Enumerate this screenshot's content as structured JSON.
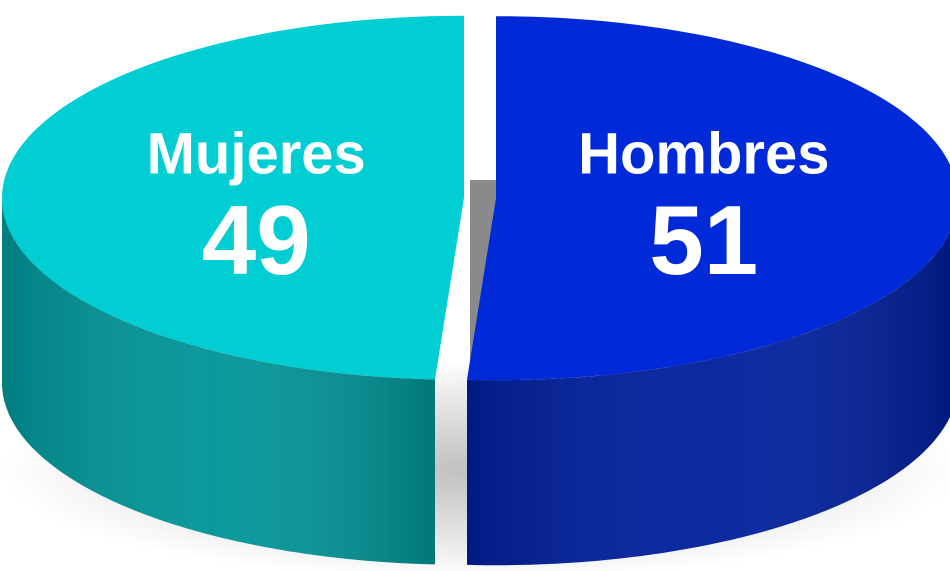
{
  "chart_data": {
    "type": "pie",
    "categories": [
      "Mujeres",
      "Hombres"
    ],
    "values": [
      49,
      51
    ],
    "colors": [
      "#00ced2",
      "#0029d8"
    ]
  }
}
